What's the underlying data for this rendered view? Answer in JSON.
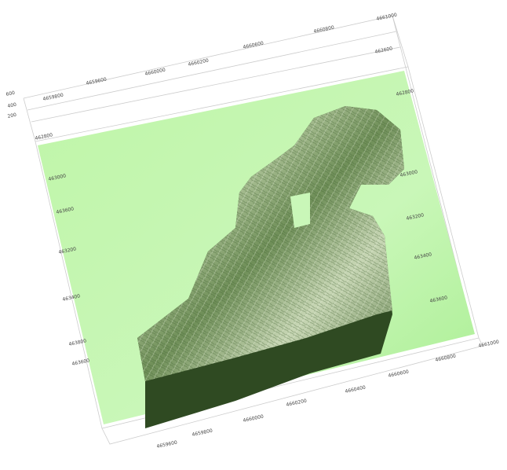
{
  "view": {
    "z_labels": [
      "600",
      "400",
      "200"
    ],
    "top_x_labels": [
      "4659800",
      "4659600",
      "4660000",
      "4660200",
      "4660600",
      "4660800",
      "4661000"
    ],
    "top_right_label": "462600",
    "left_y_labels": [
      "462800",
      "463000",
      "463600",
      "463200",
      "463400",
      "463800",
      "463600"
    ],
    "right_y_labels": [
      "462800",
      "463000",
      "463200",
      "463400",
      "463600"
    ],
    "bottom_x_labels": [
      "4659600",
      "4659800",
      "4660000",
      "4660200",
      "4660400",
      "4660600",
      "4660800",
      "4661000"
    ]
  }
}
